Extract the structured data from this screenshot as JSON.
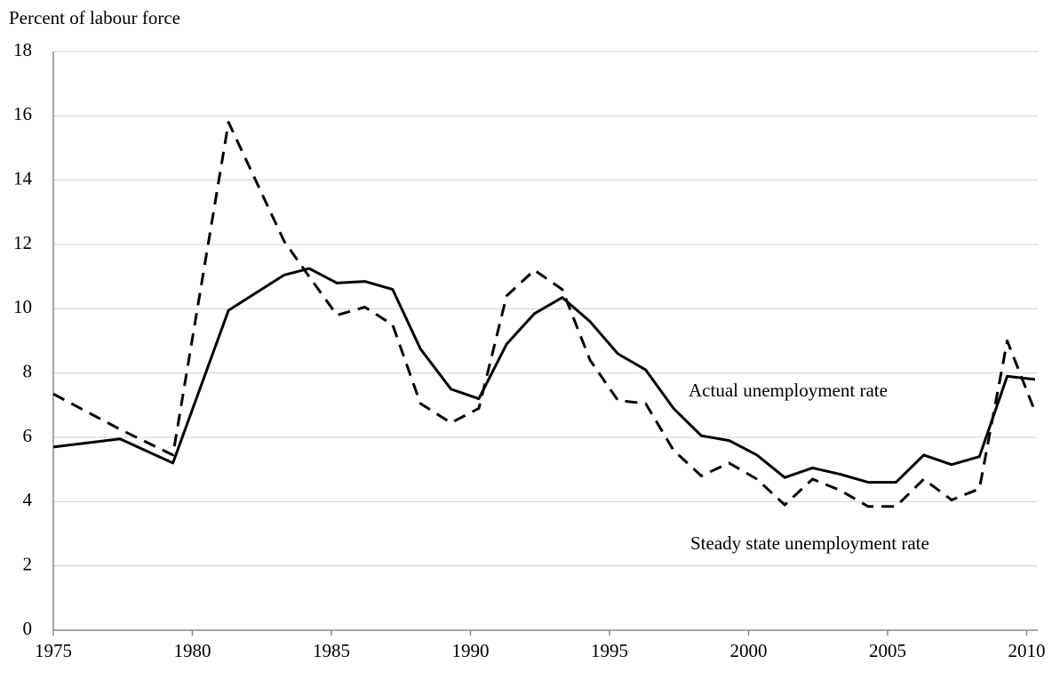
{
  "chart_data": {
    "type": "line",
    "y_label": "Percent of labour force",
    "x": [
      1975,
      1977.4,
      1979.3,
      1981.3,
      1983.3,
      1984.2,
      1985.2,
      1986.2,
      1987.2,
      1988.2,
      1989.3,
      1990.3,
      1991.3,
      1992.3,
      1993.3,
      1994.3,
      1995.3,
      1996.3,
      1997.3,
      1998.3,
      1999.3,
      2000.3,
      2001.3,
      2002.3,
      2003.3,
      2004.3,
      2005.3,
      2006.3,
      2007.3,
      2008.3,
      2009.3,
      2010.3
    ],
    "series": [
      {
        "name": "Actual unemployment rate",
        "color": "#000000",
        "style": "solid",
        "values": [
          5.7,
          5.95,
          5.2,
          9.95,
          11.05,
          11.25,
          10.8,
          10.85,
          10.6,
          8.75,
          7.5,
          7.2,
          8.9,
          9.85,
          10.35,
          9.6,
          8.6,
          8.1,
          6.9,
          6.05,
          5.9,
          5.45,
          4.75,
          5.05,
          4.85,
          4.6,
          4.6,
          5.45,
          5.15,
          5.4,
          7.9,
          7.8
        ]
      },
      {
        "name": "Steady state unemployment rate",
        "color": "#000000",
        "style": "dashed",
        "values": [
          7.35,
          6.25,
          5.45,
          15.8,
          12.1,
          11.0,
          9.8,
          10.05,
          9.5,
          7.05,
          6.45,
          6.9,
          10.4,
          11.2,
          10.6,
          8.4,
          7.15,
          7.05,
          5.6,
          4.8,
          5.2,
          4.7,
          3.9,
          4.7,
          4.35,
          3.85,
          3.85,
          4.7,
          4.05,
          4.4,
          9.0,
          6.8
        ]
      }
    ],
    "xlim": [
      1975,
      2010.4
    ],
    "xticks": [
      1975,
      1980,
      1985,
      1990,
      1995,
      2000,
      2005,
      2010
    ],
    "ylim": [
      0,
      18
    ],
    "yticks": [
      0,
      2,
      4,
      6,
      8,
      10,
      12,
      14,
      16,
      18
    ],
    "grid": true
  }
}
